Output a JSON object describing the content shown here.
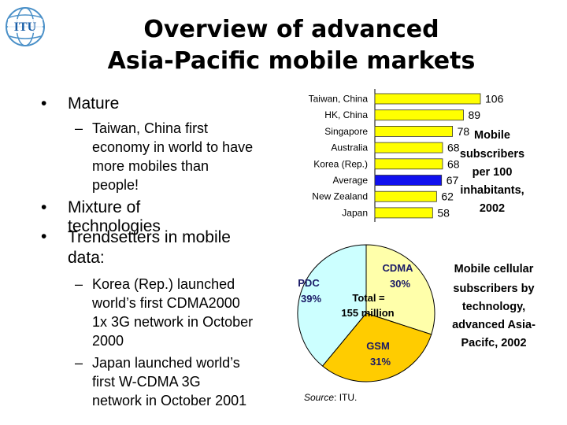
{
  "logo": {
    "text": "ITU"
  },
  "title": {
    "line1": "Overview of advanced",
    "line2": "Asia-Pacific mobile markets"
  },
  "bullets": {
    "mature": {
      "bullet": "•",
      "text": "Mature"
    },
    "mature_sub": {
      "dash": "–",
      "lines": [
        "Taiwan, China first",
        "economy in world to have",
        "more mobiles than",
        "people!"
      ]
    },
    "mixture": {
      "bullet": "•",
      "text": "Mixture of technologies"
    },
    "trend": {
      "bullet": "•",
      "lines": [
        "Trendsetters in mobile",
        "data:"
      ]
    },
    "korea": {
      "dash": "–",
      "lines": [
        "Korea (Rep.) launched",
        "world’s first CDMA2000",
        "1x 3G network in October",
        "2000"
      ]
    },
    "japan": {
      "dash": "–",
      "lines": [
        "Japan launched world’s",
        "first W-CDMA 3G",
        "network in October 2001"
      ]
    }
  },
  "chart_data": [
    {
      "type": "bar",
      "orientation": "horizontal",
      "categories": [
        "Taiwan, China",
        "HK, China",
        "Singapore",
        "Australia",
        "Korea (Rep.)",
        "Average",
        "New Zealand",
        "Japan"
      ],
      "values": [
        106,
        89,
        78,
        68,
        68,
        67,
        62,
        58
      ],
      "colors": [
        "#ffff00",
        "#ffff00",
        "#ffff00",
        "#ffff00",
        "#ffff00",
        "#1010ee",
        "#ffff00",
        "#ffff00"
      ],
      "caption_lines": [
        "Mobile",
        "subscribers",
        "per 100",
        "inhabitants,",
        "2002"
      ]
    },
    {
      "type": "pie",
      "slices": [
        {
          "label": "CDMA",
          "value": 30,
          "value_label": "30%",
          "color": "#ffffaa"
        },
        {
          "label": "GSM",
          "value": 31,
          "value_label": "31%",
          "color": "#ffcc00"
        },
        {
          "label": "PDC",
          "value": 39,
          "value_label": "39%",
          "color": "#ccffff"
        }
      ],
      "center_lines": [
        "Total =",
        "155 million"
      ],
      "caption_lines": [
        "Mobile cellular",
        "subscribers by",
        "technology,",
        "advanced Asia-",
        "Pacifc, 2002"
      ],
      "source_prefix": "Source",
      "source_text": ": ITU."
    }
  ]
}
